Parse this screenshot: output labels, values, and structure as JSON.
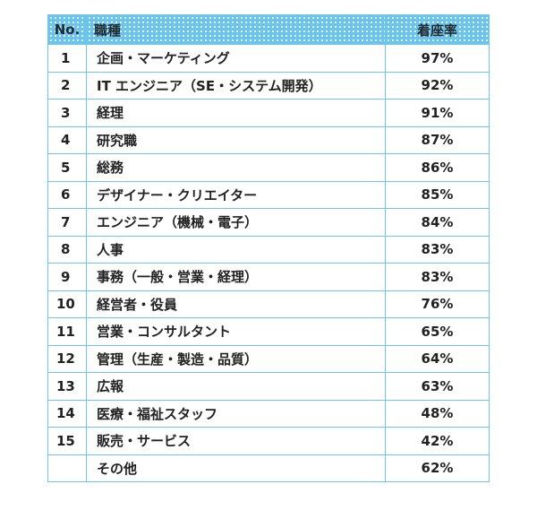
{
  "table": {
    "headers": {
      "no": "No.",
      "job": "職種",
      "rate": "着座率"
    },
    "rows": [
      {
        "no": "1",
        "job": "企画・マーケティング",
        "rate": "97%"
      },
      {
        "no": "2",
        "job": "IT エンジニア（SE・システム開発）",
        "rate": "92%"
      },
      {
        "no": "3",
        "job": "経理",
        "rate": "91%"
      },
      {
        "no": "4",
        "job": "研究職",
        "rate": "87%"
      },
      {
        "no": "5",
        "job": "総務",
        "rate": "86%"
      },
      {
        "no": "6",
        "job": "デザイナー・クリエイター",
        "rate": "85%"
      },
      {
        "no": "7",
        "job": "エンジニア（機械・電子）",
        "rate": "84%"
      },
      {
        "no": "8",
        "job": "人事",
        "rate": "83%"
      },
      {
        "no": "9",
        "job": "事務（一般・営業・経理）",
        "rate": "83%"
      },
      {
        "no": "10",
        "job": "経営者・役員",
        "rate": "76%"
      },
      {
        "no": "11",
        "job": "営業・コンサルタント",
        "rate": "65%"
      },
      {
        "no": "12",
        "job": "管理（生産・製造・品質）",
        "rate": "64%"
      },
      {
        "no": "13",
        "job": "広報",
        "rate": "63%"
      },
      {
        "no": "14",
        "job": "医療・福祉スタッフ",
        "rate": "48%"
      },
      {
        "no": "15",
        "job": "販売・サービス",
        "rate": "42%"
      },
      {
        "no": "",
        "job": "その他",
        "rate": "62%"
      }
    ]
  },
  "colors": {
    "header_bg": "#6cc4ea",
    "border": "#6fc6ea",
    "text": "#222222"
  }
}
